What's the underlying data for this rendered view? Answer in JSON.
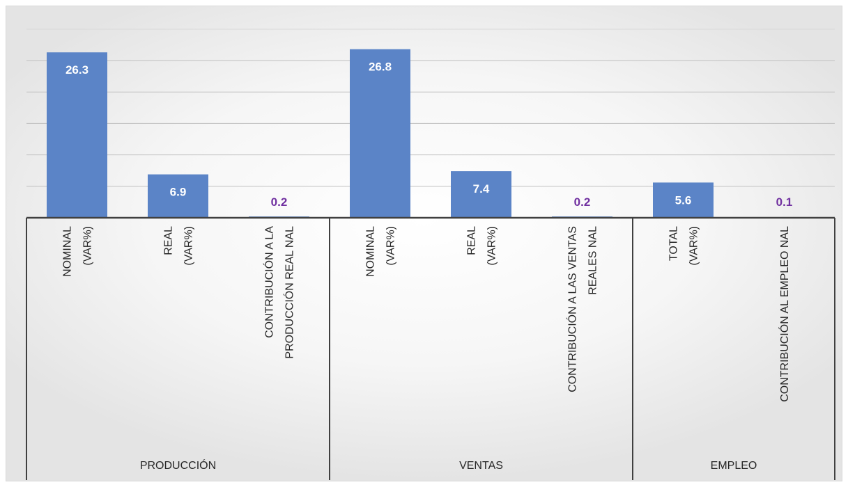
{
  "chart_data": {
    "type": "bar",
    "title": "",
    "ylim": [
      0,
      30
    ],
    "y_gridlines": [
      5,
      10,
      15,
      20,
      25
    ],
    "grid": true,
    "legend": "none",
    "colors": {
      "bar": "#5b84c7",
      "label_inside": "#ffffff",
      "label_small": "#7030a0"
    },
    "groups": [
      {
        "name": "PRODUCCIÓN",
        "span": 3
      },
      {
        "name": "VENTAS",
        "span": 3
      },
      {
        "name": "EMPLEO",
        "span": 2
      }
    ],
    "categories": [
      [
        "NOMINAL",
        "(VAR%)"
      ],
      [
        "REAL",
        "(VAR%)"
      ],
      [
        "CONTRIBUCIÓN A LA",
        "PRODUCCIÓN REAL NAL"
      ],
      [
        "NOMINAL",
        "(VAR%)"
      ],
      [
        "REAL",
        "(VAR%)"
      ],
      [
        "CONTRIBUCIÓN A LAS VENTAS",
        "REALES NAL"
      ],
      [
        "TOTAL",
        "(VAR%)"
      ],
      [
        "CONTRIBUCIÓN AL EMPLEO NAL"
      ]
    ],
    "values": [
      26.3,
      6.9,
      0.2,
      26.8,
      7.4,
      0.2,
      5.6,
      0.1
    ],
    "value_labels": [
      "26.3",
      "6.9",
      "0.2",
      "26.8",
      "7.4",
      "0.2",
      "5.6",
      "0.1"
    ]
  }
}
